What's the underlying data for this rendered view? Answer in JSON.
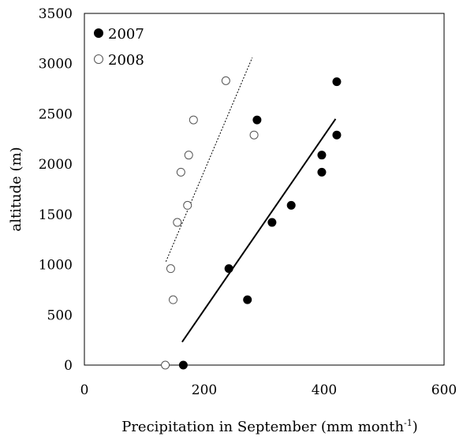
{
  "chart_data": {
    "type": "scatter",
    "xlabel_main": "Precipitation in September  (mm month",
    "xlabel_sup": "-1",
    "xlabel_end": ")",
    "ylabel": "altitude (m)",
    "xlim": [
      0,
      600
    ],
    "ylim": [
      0,
      3500
    ],
    "x_ticks": [
      "0",
      "200",
      "400",
      "600"
    ],
    "y_ticks": [
      "0",
      "500",
      "1000",
      "1500",
      "2000",
      "2500",
      "3000",
      "3500"
    ],
    "legend_position": "top-left",
    "series": [
      {
        "name": "2007",
        "marker": "filled-circle",
        "color": "#000000",
        "points": [
          {
            "x": 165,
            "y": 0
          },
          {
            "x": 272,
            "y": 650
          },
          {
            "x": 241,
            "y": 960
          },
          {
            "x": 313,
            "y": 1420
          },
          {
            "x": 345,
            "y": 1590
          },
          {
            "x": 396,
            "y": 1920
          },
          {
            "x": 396,
            "y": 2090
          },
          {
            "x": 421,
            "y": 2290
          },
          {
            "x": 288,
            "y": 2440
          },
          {
            "x": 421,
            "y": 2820
          }
        ],
        "trendline": {
          "style": "solid",
          "x": [
            163,
            419
          ],
          "y": [
            230,
            2450
          ]
        }
      },
      {
        "name": "2008",
        "marker": "open-circle",
        "color": "#000000",
        "points": [
          {
            "x": 135,
            "y": 0
          },
          {
            "x": 148,
            "y": 650
          },
          {
            "x": 144,
            "y": 960
          },
          {
            "x": 155,
            "y": 1420
          },
          {
            "x": 172,
            "y": 1590
          },
          {
            "x": 161,
            "y": 1920
          },
          {
            "x": 174,
            "y": 2090
          },
          {
            "x": 283,
            "y": 2290
          },
          {
            "x": 182,
            "y": 2440
          },
          {
            "x": 236,
            "y": 2830
          }
        ],
        "trendline": {
          "style": "dotted",
          "x": [
            136,
            280
          ],
          "y": [
            1030,
            3060
          ]
        }
      }
    ]
  }
}
